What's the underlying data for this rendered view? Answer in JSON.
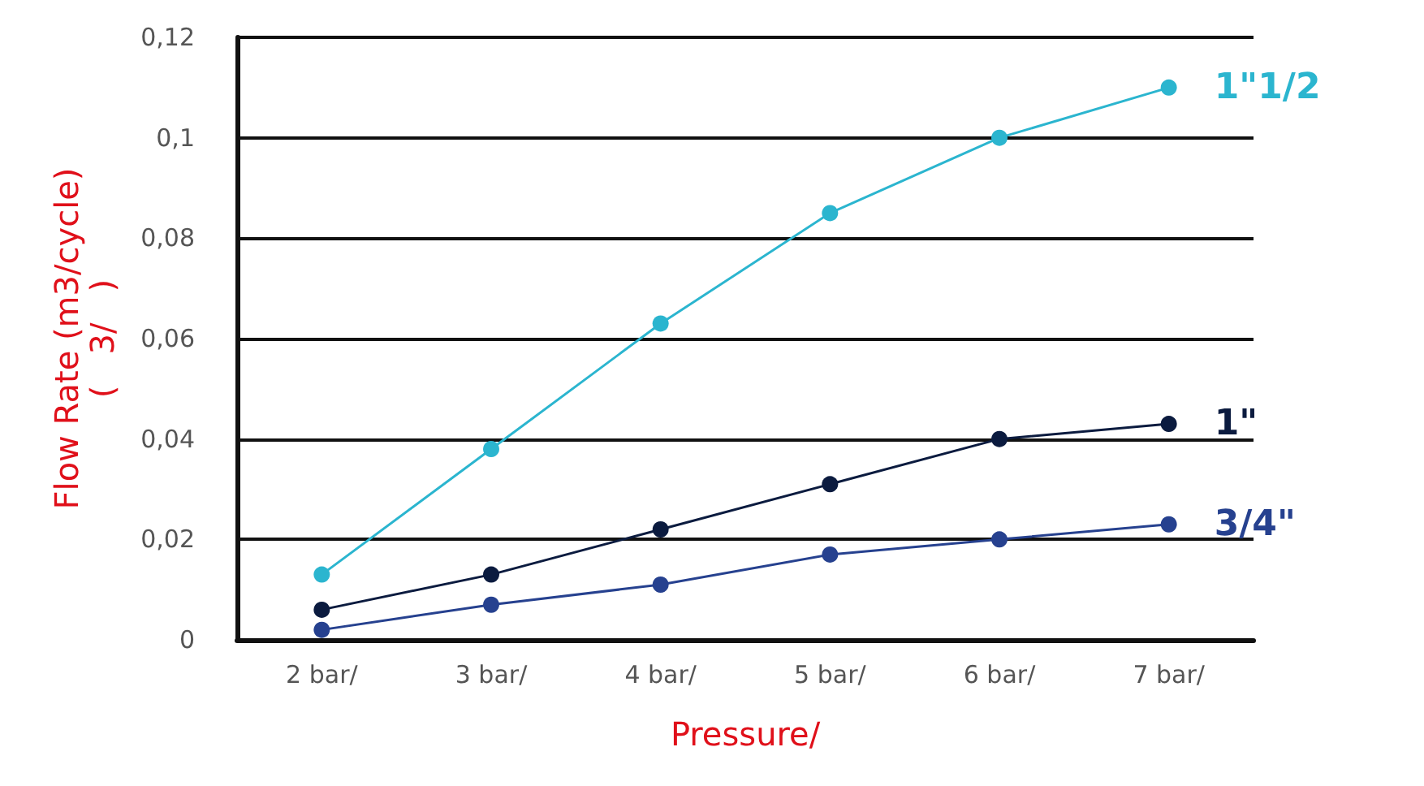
{
  "chart_data": {
    "type": "line",
    "xlabel": "Pressure/",
    "ylabel": "Flow Rate (m3/cycle)\n(   3/   )",
    "categories": [
      "2 bar/",
      "3 bar/",
      "4 bar/",
      "5 bar/",
      "6 bar/",
      "7 bar/"
    ],
    "ylim": [
      0,
      0.12
    ],
    "yticks": [
      {
        "value": 0,
        "label": "0"
      },
      {
        "value": 0.02,
        "label": "0,02"
      },
      {
        "value": 0.04,
        "label": "0,04"
      },
      {
        "value": 0.06,
        "label": "0,06"
      },
      {
        "value": 0.08,
        "label": "0,08"
      },
      {
        "value": 0.1,
        "label": "0,1"
      },
      {
        "value": 0.12,
        "label": "0,12"
      }
    ],
    "grid": "y",
    "marker": "circle",
    "line_style": "solid",
    "legend": false,
    "series": [
      {
        "name": "1\"1/2",
        "color": "#2bb5cf",
        "values": [
          0.013,
          0.038,
          0.063,
          0.085,
          0.1,
          0.11
        ]
      },
      {
        "name": "1\"",
        "color": "#0b1b3f",
        "values": [
          0.006,
          0.013,
          0.022,
          0.031,
          0.04,
          0.043
        ]
      },
      {
        "name": "3/4\"",
        "color": "#26418f",
        "values": [
          0.002,
          0.007,
          0.011,
          0.017,
          0.02,
          0.023
        ]
      }
    ]
  }
}
